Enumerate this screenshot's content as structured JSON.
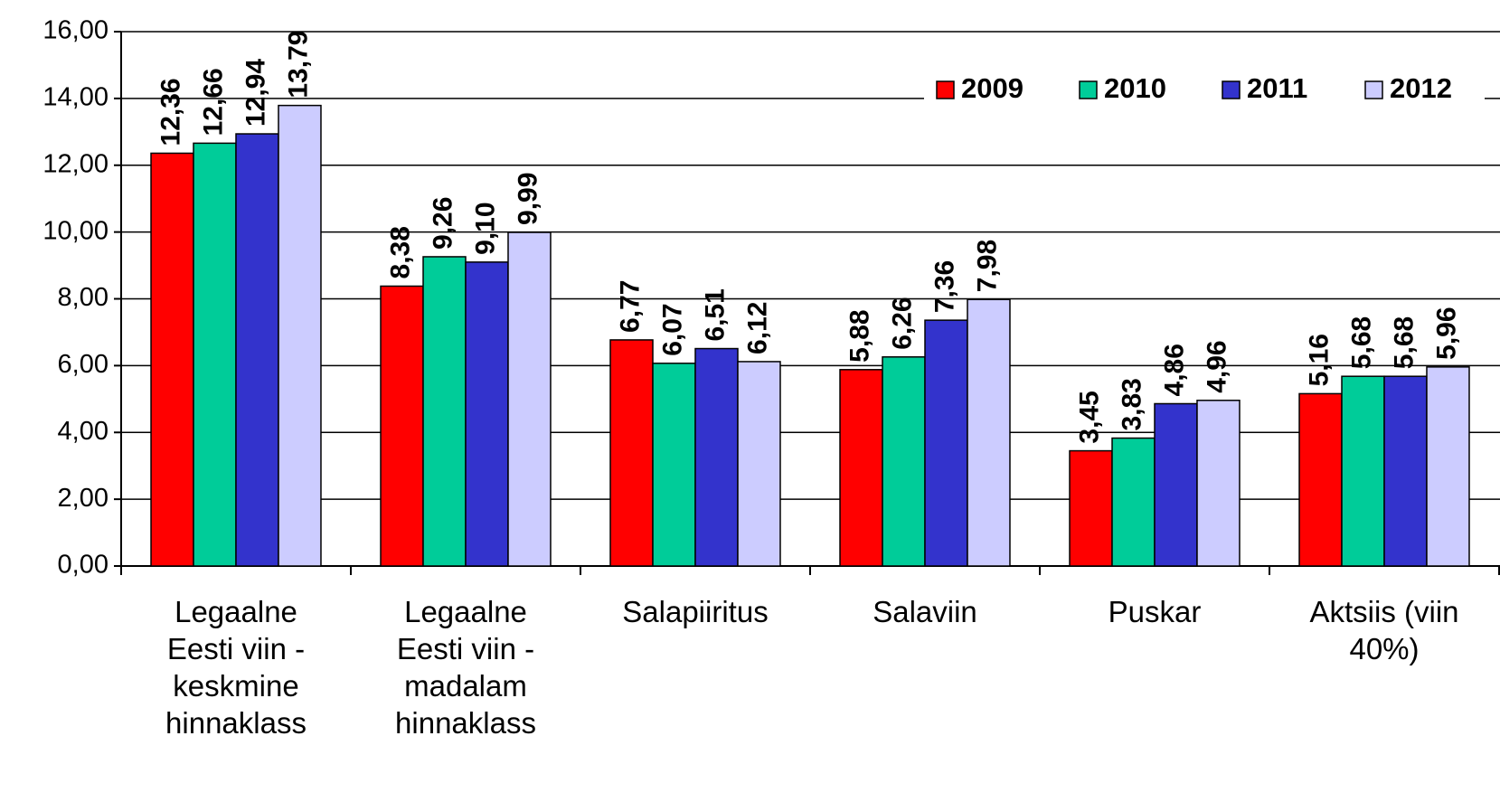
{
  "chart_data": {
    "type": "bar",
    "categories": [
      "Legaalne Eesti viin - keskmine hinnaklass",
      "Legaalne Eesti viin - madalam hinnaklass",
      "Salapiiritus",
      "Salaviin",
      "Puskar",
      "Aktsiis (viin 40%)"
    ],
    "series": [
      {
        "name": "2009",
        "color": "#ff0000",
        "values": [
          12.36,
          8.38,
          6.77,
          5.88,
          3.45,
          5.16
        ],
        "value_labels": [
          "12,36",
          "8,38",
          "6,77",
          "5,88",
          "3,45",
          "5,16"
        ]
      },
      {
        "name": "2010",
        "color": "#00cc99",
        "values": [
          12.66,
          9.26,
          6.07,
          6.26,
          3.83,
          5.68
        ],
        "value_labels": [
          "12,66",
          "9,26",
          "6,07",
          "6,26",
          "3,83",
          "5,68"
        ]
      },
      {
        "name": "2011",
        "color": "#3333cc",
        "values": [
          12.94,
          9.1,
          6.51,
          7.36,
          4.86,
          5.68
        ],
        "value_labels": [
          "12,94",
          "9,10",
          "6,51",
          "7,36",
          "4,86",
          "5,68"
        ]
      },
      {
        "name": "2012",
        "color": "#ccccff",
        "values": [
          13.79,
          9.99,
          6.12,
          7.98,
          4.96,
          5.96
        ],
        "value_labels": [
          "13,79",
          "9,99",
          "6,12",
          "7,98",
          "4,96",
          "5,96"
        ]
      }
    ],
    "ylim": [
      0,
      16
    ],
    "yticks": [
      {
        "value": 0,
        "label": "0,00"
      },
      {
        "value": 2,
        "label": "2,00"
      },
      {
        "value": 4,
        "label": "4,00"
      },
      {
        "value": 6,
        "label": "6,00"
      },
      {
        "value": 8,
        "label": "8,00"
      },
      {
        "value": 10,
        "label": "10,00"
      },
      {
        "value": 12,
        "label": "12,00"
      },
      {
        "value": 14,
        "label": "14,00"
      },
      {
        "value": 16,
        "label": "16,00"
      }
    ],
    "grid": true,
    "legend": "top-right"
  }
}
